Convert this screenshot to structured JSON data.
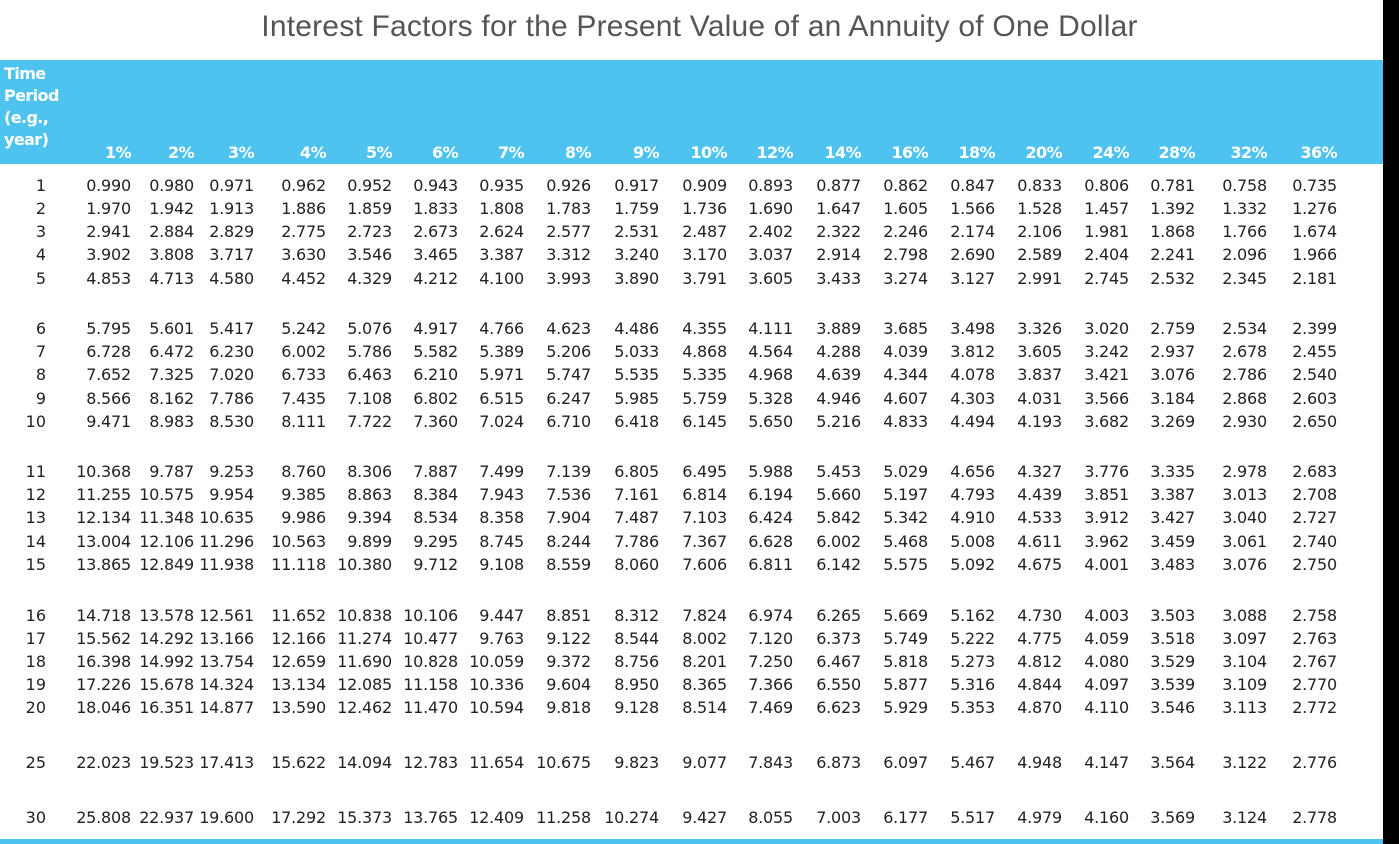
{
  "title": "Interest Factors for the Present Value of an Annuity of One Dollar",
  "table": {
    "period_header": [
      "Time",
      "Period",
      "(e.g.,",
      "year)"
    ],
    "rates": [
      "1%",
      "2%",
      "3%",
      "4%",
      "5%",
      "6%",
      "7%",
      "8%",
      "9%",
      "10%",
      "12%",
      "14%",
      "16%",
      "18%",
      "20%",
      "24%",
      "28%",
      "32%",
      "36%"
    ],
    "rows": [
      {
        "period": "1",
        "values": [
          "0.990",
          "0.980",
          "0.971",
          "0.962",
          "0.952",
          "0.943",
          "0.935",
          "0.926",
          "0.917",
          "0.909",
          "0.893",
          "0.877",
          "0.862",
          "0.847",
          "0.833",
          "0.806",
          "0.781",
          "0.758",
          "0.735"
        ]
      },
      {
        "period": "2",
        "values": [
          "1.970",
          "1.942",
          "1.913",
          "1.886",
          "1.859",
          "1.833",
          "1.808",
          "1.783",
          "1.759",
          "1.736",
          "1.690",
          "1.647",
          "1.605",
          "1.566",
          "1.528",
          "1.457",
          "1.392",
          "1.332",
          "1.276"
        ]
      },
      {
        "period": "3",
        "values": [
          "2.941",
          "2.884",
          "2.829",
          "2.775",
          "2.723",
          "2.673",
          "2.624",
          "2.577",
          "2.531",
          "2.487",
          "2.402",
          "2.322",
          "2.246",
          "2.174",
          "2.106",
          "1.981",
          "1.868",
          "1.766",
          "1.674"
        ]
      },
      {
        "period": "4",
        "values": [
          "3.902",
          "3.808",
          "3.717",
          "3.630",
          "3.546",
          "3.465",
          "3.387",
          "3.312",
          "3.240",
          "3.170",
          "3.037",
          "2.914",
          "2.798",
          "2.690",
          "2.589",
          "2.404",
          "2.241",
          "2.096",
          "1.966"
        ]
      },
      {
        "period": "5",
        "values": [
          "4.853",
          "4.713",
          "4.580",
          "4.452",
          "4.329",
          "4.212",
          "4.100",
          "3.993",
          "3.890",
          "3.791",
          "3.605",
          "3.433",
          "3.274",
          "3.127",
          "2.991",
          "2.745",
          "2.532",
          "2.345",
          "2.181"
        ]
      },
      {
        "period": "6",
        "values": [
          "5.795",
          "5.601",
          "5.417",
          "5.242",
          "5.076",
          "4.917",
          "4.766",
          "4.623",
          "4.486",
          "4.355",
          "4.111",
          "3.889",
          "3.685",
          "3.498",
          "3.326",
          "3.020",
          "2.759",
          "2.534",
          "2.399"
        ]
      },
      {
        "period": "7",
        "values": [
          "6.728",
          "6.472",
          "6.230",
          "6.002",
          "5.786",
          "5.582",
          "5.389",
          "5.206",
          "5.033",
          "4.868",
          "4.564",
          "4.288",
          "4.039",
          "3.812",
          "3.605",
          "3.242",
          "2.937",
          "2.678",
          "2.455"
        ]
      },
      {
        "period": "8",
        "values": [
          "7.652",
          "7.325",
          "7.020",
          "6.733",
          "6.463",
          "6.210",
          "5.971",
          "5.747",
          "5.535",
          "5.335",
          "4.968",
          "4.639",
          "4.344",
          "4.078",
          "3.837",
          "3.421",
          "3.076",
          "2.786",
          "2.540"
        ]
      },
      {
        "period": "9",
        "values": [
          "8.566",
          "8.162",
          "7.786",
          "7.435",
          "7.108",
          "6.802",
          "6.515",
          "6.247",
          "5.985",
          "5.759",
          "5.328",
          "4.946",
          "4.607",
          "4.303",
          "4.031",
          "3.566",
          "3.184",
          "2.868",
          "2.603"
        ]
      },
      {
        "period": "10",
        "values": [
          "9.471",
          "8.983",
          "8.530",
          "8.111",
          "7.722",
          "7.360",
          "7.024",
          "6.710",
          "6.418",
          "6.145",
          "5.650",
          "5.216",
          "4.833",
          "4.494",
          "4.193",
          "3.682",
          "3.269",
          "2.930",
          "2.650"
        ]
      },
      {
        "period": "11",
        "values": [
          "10.368",
          "9.787",
          "9.253",
          "8.760",
          "8.306",
          "7.887",
          "7.499",
          "7.139",
          "6.805",
          "6.495",
          "5.988",
          "5.453",
          "5.029",
          "4.656",
          "4.327",
          "3.776",
          "3.335",
          "2.978",
          "2.683"
        ]
      },
      {
        "period": "12",
        "values": [
          "11.255",
          "10.575",
          "9.954",
          "9.385",
          "8.863",
          "8.384",
          "7.943",
          "7.536",
          "7.161",
          "6.814",
          "6.194",
          "5.660",
          "5.197",
          "4.793",
          "4.439",
          "3.851",
          "3.387",
          "3.013",
          "2.708"
        ]
      },
      {
        "period": "13",
        "values": [
          "12.134",
          "11.348",
          "10.635",
          "9.986",
          "9.394",
          "8.534",
          "8.358",
          "7.904",
          "7.487",
          "7.103",
          "6.424",
          "5.842",
          "5.342",
          "4.910",
          "4.533",
          "3.912",
          "3.427",
          "3.040",
          "2.727"
        ]
      },
      {
        "period": "14",
        "values": [
          "13.004",
          "12.106",
          "11.296",
          "10.563",
          "9.899",
          "9.295",
          "8.745",
          "8.244",
          "7.786",
          "7.367",
          "6.628",
          "6.002",
          "5.468",
          "5.008",
          "4.611",
          "3.962",
          "3.459",
          "3.061",
          "2.740"
        ]
      },
      {
        "period": "15",
        "values": [
          "13.865",
          "12.849",
          "11.938",
          "11.118",
          "10.380",
          "9.712",
          "9.108",
          "8.559",
          "8.060",
          "7.606",
          "6.811",
          "6.142",
          "5.575",
          "5.092",
          "4.675",
          "4.001",
          "3.483",
          "3.076",
          "2.750"
        ]
      },
      {
        "period": "16",
        "values": [
          "14.718",
          "13.578",
          "12.561",
          "11.652",
          "10.838",
          "10.106",
          "9.447",
          "8.851",
          "8.312",
          "7.824",
          "6.974",
          "6.265",
          "5.669",
          "5.162",
          "4.730",
          "4.003",
          "3.503",
          "3.088",
          "2.758"
        ]
      },
      {
        "period": "17",
        "values": [
          "15.562",
          "14.292",
          "13.166",
          "12.166",
          "11.274",
          "10.477",
          "9.763",
          "9.122",
          "8.544",
          "8.002",
          "7.120",
          "6.373",
          "5.749",
          "5.222",
          "4.775",
          "4.059",
          "3.518",
          "3.097",
          "2.763"
        ]
      },
      {
        "period": "18",
        "values": [
          "16.398",
          "14.992",
          "13.754",
          "12.659",
          "11.690",
          "10.828",
          "10.059",
          "9.372",
          "8.756",
          "8.201",
          "7.250",
          "6.467",
          "5.818",
          "5.273",
          "4.812",
          "4.080",
          "3.529",
          "3.104",
          "2.767"
        ]
      },
      {
        "period": "19",
        "values": [
          "17.226",
          "15.678",
          "14.324",
          "13.134",
          "12.085",
          "11.158",
          "10.336",
          "9.604",
          "8.950",
          "8.365",
          "7.366",
          "6.550",
          "5.877",
          "5.316",
          "4.844",
          "4.097",
          "3.539",
          "3.109",
          "2.770"
        ]
      },
      {
        "period": "20",
        "values": [
          "18.046",
          "16.351",
          "14.877",
          "13.590",
          "12.462",
          "11.470",
          "10.594",
          "9.818",
          "9.128",
          "8.514",
          "7.469",
          "6.623",
          "5.929",
          "5.353",
          "4.870",
          "4.110",
          "3.546",
          "3.113",
          "2.772"
        ]
      },
      {
        "period": "25",
        "values": [
          "22.023",
          "19.523",
          "17.413",
          "15.622",
          "14.094",
          "12.783",
          "11.654",
          "10.675",
          "9.823",
          "9.077",
          "7.843",
          "6.873",
          "6.097",
          "5.467",
          "4.948",
          "4.147",
          "3.564",
          "3.122",
          "2.776"
        ]
      },
      {
        "period": "30",
        "values": [
          "25.808",
          "22.937",
          "19.600",
          "17.292",
          "15.373",
          "13.765",
          "12.409",
          "11.258",
          "10.274",
          "9.427",
          "8.055",
          "7.003",
          "6.177",
          "5.517",
          "4.979",
          "4.160",
          "3.569",
          "3.124",
          "2.778"
        ]
      }
    ]
  },
  "colors": {
    "header_band": "#4fc3ef",
    "header_text": "#ffffff",
    "title_text": "#555555",
    "body_text": "#222222"
  }
}
